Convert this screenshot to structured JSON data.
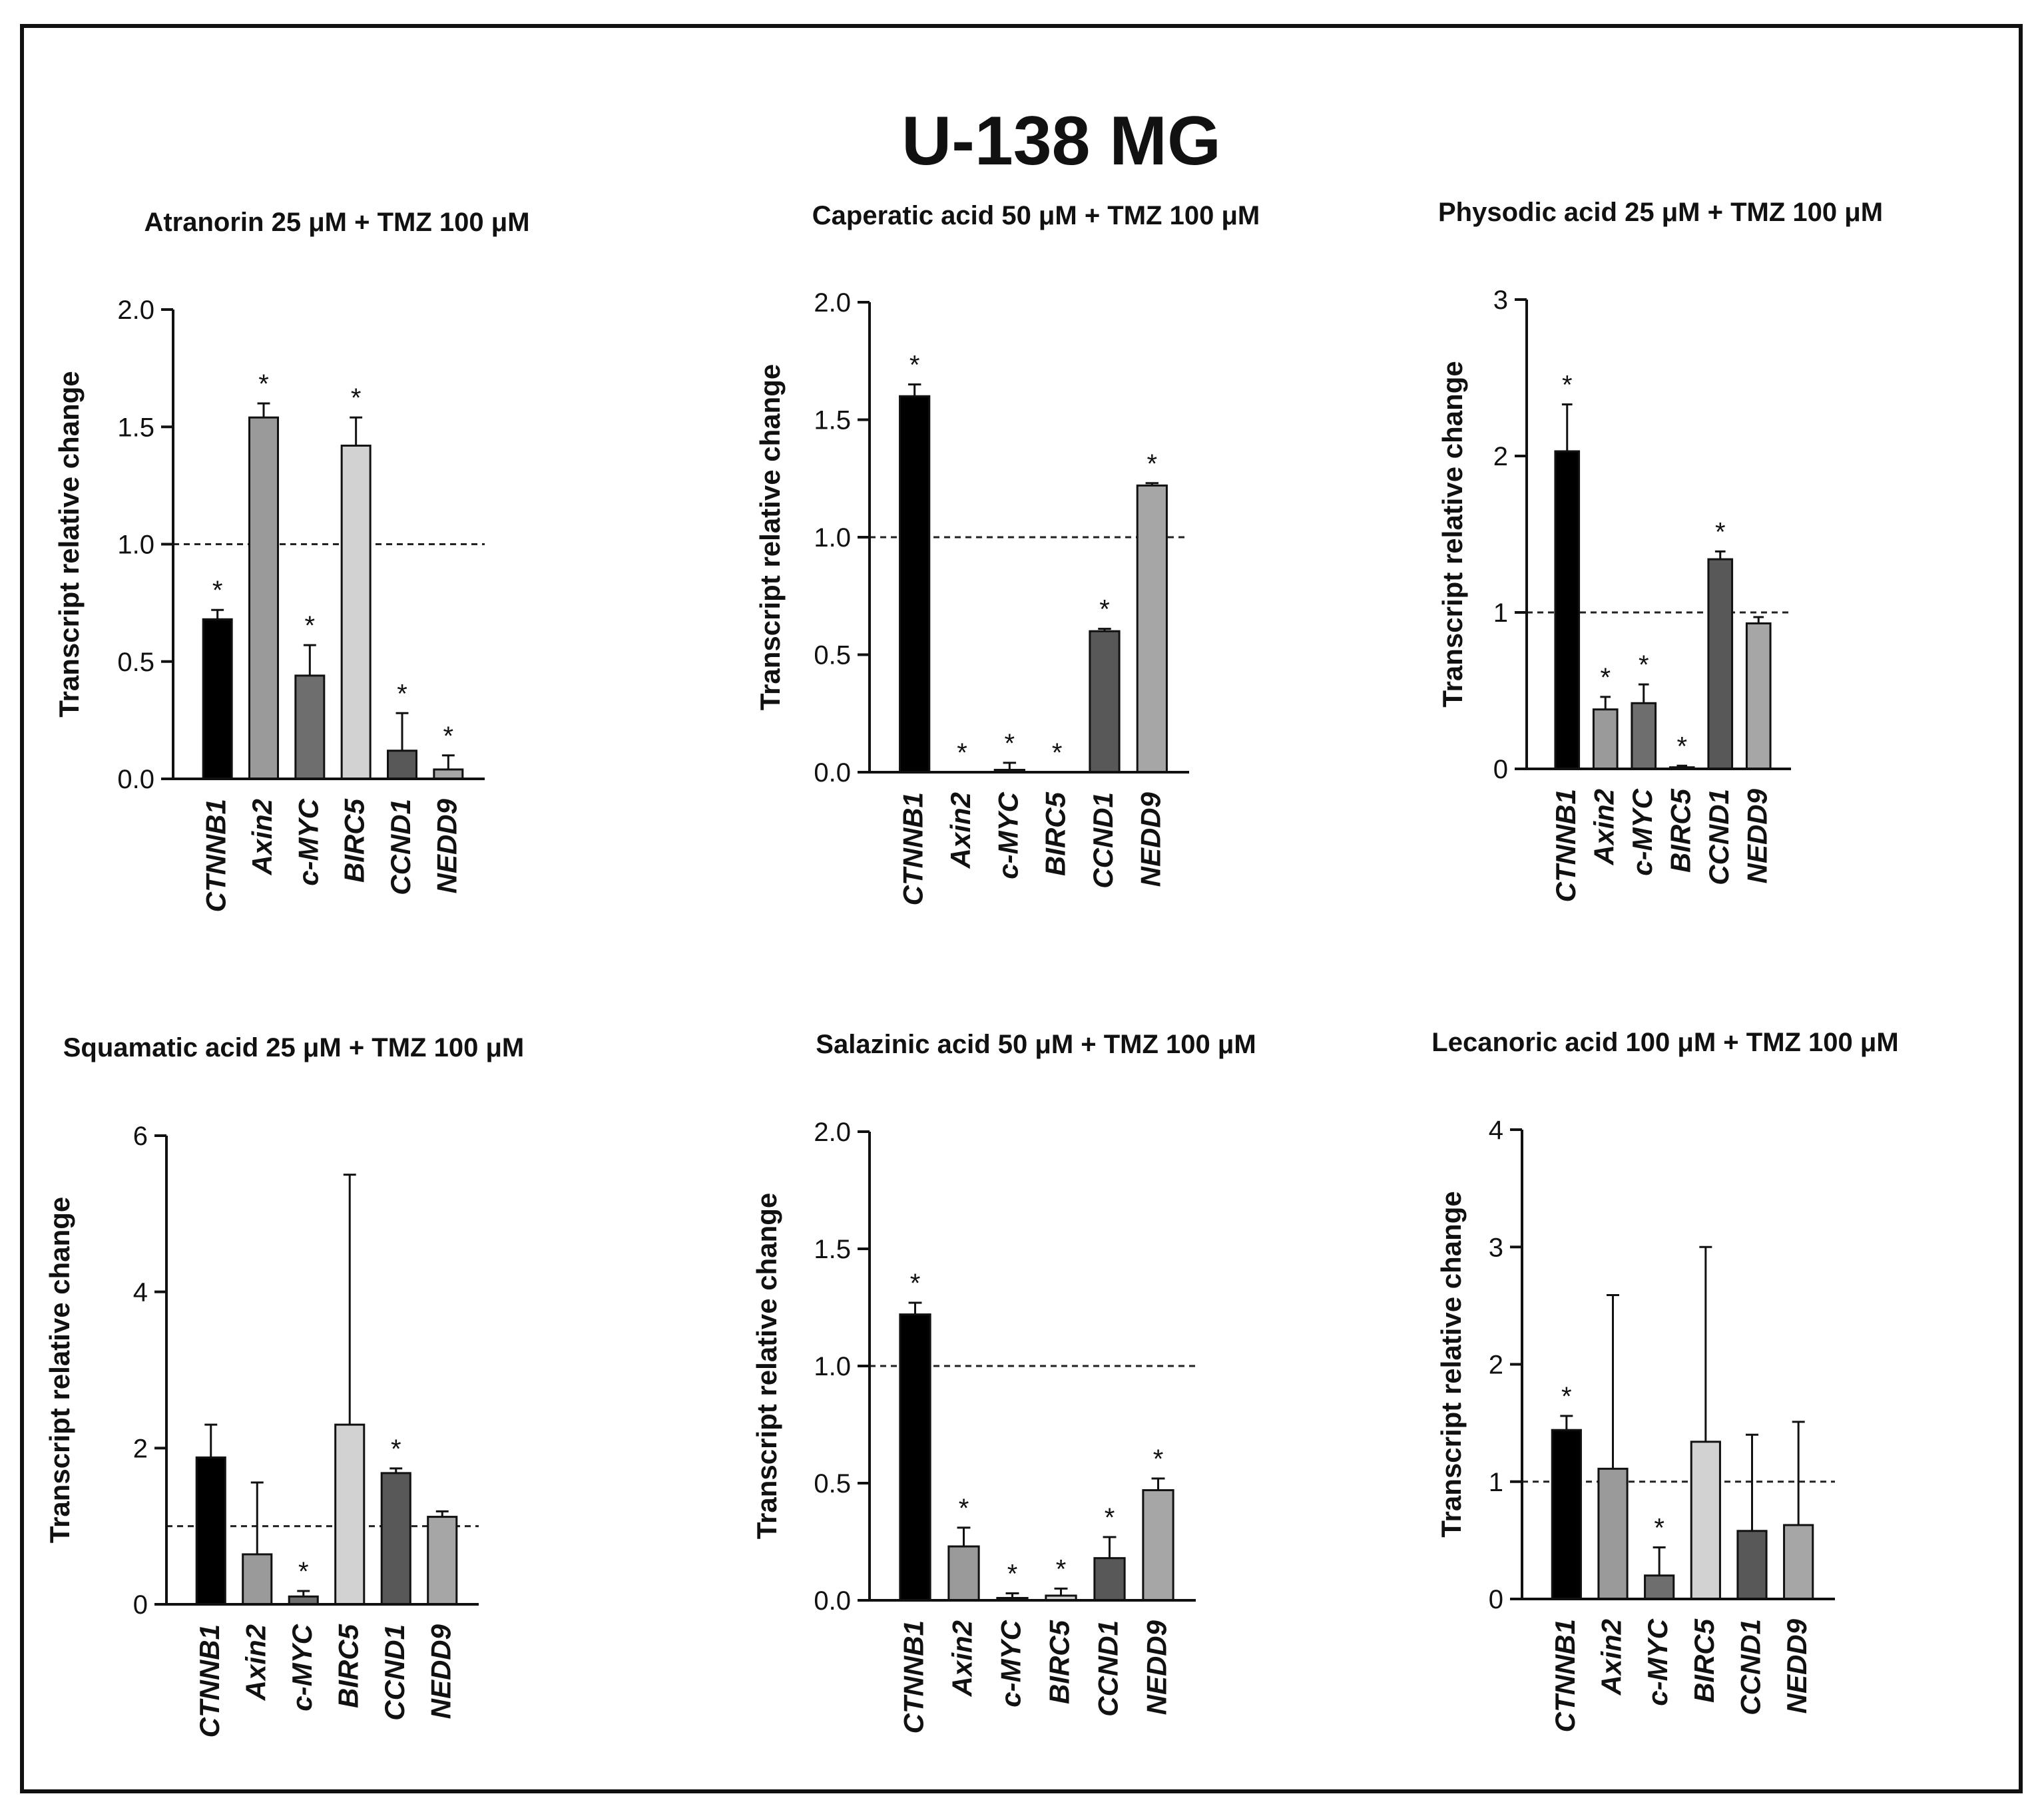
{
  "figure_title": "U-138 MG",
  "chart_data": [
    {
      "type": "bar",
      "title": "Atranorin 25 μM + TMZ 100 μM",
      "ylabel": "Transcript relative change",
      "categories": [
        "CTNNB1",
        "Axin2",
        "c-MYC",
        "BIRC5",
        "CCND1",
        "NEDD9"
      ],
      "values": [
        0.68,
        1.54,
        0.44,
        1.42,
        0.12,
        0.04
      ],
      "errors": [
        0.04,
        0.06,
        0.13,
        0.12,
        0.16,
        0.06
      ],
      "significant": [
        true,
        true,
        true,
        true,
        true,
        true
      ],
      "ylim": [
        0,
        2.0
      ],
      "yticks": [
        0,
        0.5,
        1.0,
        1.5,
        2.0
      ],
      "ytick_labels": [
        "0.0",
        "0.5",
        "1.0",
        "1.5",
        "2.0"
      ],
      "reference_line": 1.0,
      "colors": [
        "#000000",
        "#9a9a9a",
        "#6e6e6e",
        "#d2d2d2",
        "#585858",
        "#a6a6a6"
      ]
    },
    {
      "type": "bar",
      "title": "Caperatic acid 50 μM + TMZ 100 μM",
      "ylabel": "Transcript relative change",
      "categories": [
        "CTNNB1",
        "Axin2",
        "c-MYC",
        "BIRC5",
        "CCND1",
        "NEDD9"
      ],
      "values": [
        1.6,
        0.0,
        0.01,
        0.0,
        0.6,
        1.22
      ],
      "errors": [
        0.05,
        0.0,
        0.03,
        0.0,
        0.01,
        0.01
      ],
      "significant": [
        true,
        true,
        true,
        true,
        true,
        true
      ],
      "ylim": [
        0,
        2.0
      ],
      "yticks": [
        0,
        0.5,
        1.0,
        1.5,
        2.0
      ],
      "ytick_labels": [
        "0.0",
        "0.5",
        "1.0",
        "1.5",
        "2.0"
      ],
      "reference_line": 1.0,
      "colors": [
        "#000000",
        "#9a9a9a",
        "#6e6e6e",
        "#d2d2d2",
        "#585858",
        "#a6a6a6"
      ]
    },
    {
      "type": "bar",
      "title": "Physodic acid 25 μM + TMZ 100 μM",
      "ylabel": "Transcript relative change",
      "categories": [
        "CTNNB1",
        "Axin2",
        "c-MYC",
        "BIRC5",
        "CCND1",
        "NEDD9"
      ],
      "values": [
        2.03,
        0.38,
        0.42,
        0.01,
        1.34,
        0.93
      ],
      "errors": [
        0.3,
        0.08,
        0.12,
        0.01,
        0.05,
        0.04
      ],
      "significant": [
        true,
        true,
        true,
        true,
        true,
        false
      ],
      "ylim": [
        0,
        3
      ],
      "yticks": [
        0,
        1,
        2,
        3
      ],
      "ytick_labels": [
        "0",
        "1",
        "2",
        "3"
      ],
      "reference_line": 1.0,
      "colors": [
        "#000000",
        "#9a9a9a",
        "#6e6e6e",
        "#d2d2d2",
        "#585858",
        "#a6a6a6"
      ]
    },
    {
      "type": "bar",
      "title": "Squamatic acid 25 μM + TMZ 100 μM",
      "ylabel": "Transcript relative change",
      "categories": [
        "CTNNB1",
        "Axin2",
        "c-MYC",
        "BIRC5",
        "CCND1",
        "NEDD9"
      ],
      "values": [
        1.88,
        0.64,
        0.1,
        2.3,
        1.68,
        1.12
      ],
      "errors": [
        0.42,
        0.92,
        0.07,
        3.2,
        0.06,
        0.07
      ],
      "significant": [
        false,
        false,
        true,
        false,
        true,
        false
      ],
      "ylim": [
        0,
        6
      ],
      "yticks": [
        0,
        2,
        4,
        6
      ],
      "ytick_labels": [
        "0",
        "2",
        "4",
        "6"
      ],
      "reference_line": 1.0,
      "colors": [
        "#000000",
        "#9a9a9a",
        "#6e6e6e",
        "#d2d2d2",
        "#585858",
        "#a6a6a6"
      ]
    },
    {
      "type": "bar",
      "title": "Salazinic acid 50 μM + TMZ 100 μM",
      "ylabel": "Transcript relative change",
      "categories": [
        "CTNNB1",
        "Axin2",
        "c-MYC",
        "BIRC5",
        "CCND1",
        "NEDD9"
      ],
      "values": [
        1.22,
        0.23,
        0.01,
        0.02,
        0.18,
        0.47
      ],
      "errors": [
        0.05,
        0.08,
        0.02,
        0.03,
        0.09,
        0.05
      ],
      "significant": [
        true,
        true,
        true,
        true,
        true,
        true
      ],
      "ylim": [
        0,
        2.0
      ],
      "yticks": [
        0,
        0.5,
        1.0,
        1.5,
        2.0
      ],
      "ytick_labels": [
        "0.0",
        "0.5",
        "1.0",
        "1.5",
        "2.0"
      ],
      "reference_line": 1.0,
      "colors": [
        "#000000",
        "#9a9a9a",
        "#6e6e6e",
        "#d2d2d2",
        "#585858",
        "#a6a6a6"
      ]
    },
    {
      "type": "bar",
      "title": "Lecanoric acid 100 μM + TMZ 100 μM",
      "ylabel": "Transcript relative change",
      "categories": [
        "CTNNB1",
        "Axin2",
        "c-MYC",
        "BIRC5",
        "CCND1",
        "NEDD9"
      ],
      "values": [
        1.44,
        1.11,
        0.2,
        1.34,
        0.58,
        0.63
      ],
      "errors": [
        0.12,
        1.48,
        0.24,
        1.66,
        0.82,
        0.88
      ],
      "significant": [
        true,
        false,
        true,
        false,
        false,
        false
      ],
      "ylim": [
        0,
        4
      ],
      "yticks": [
        0,
        1,
        2,
        3,
        4
      ],
      "ytick_labels": [
        "0",
        "1",
        "2",
        "3",
        "4"
      ],
      "reference_line": 1.0,
      "colors": [
        "#000000",
        "#9a9a9a",
        "#6e6e6e",
        "#d2d2d2",
        "#585858",
        "#a6a6a6"
      ]
    }
  ]
}
